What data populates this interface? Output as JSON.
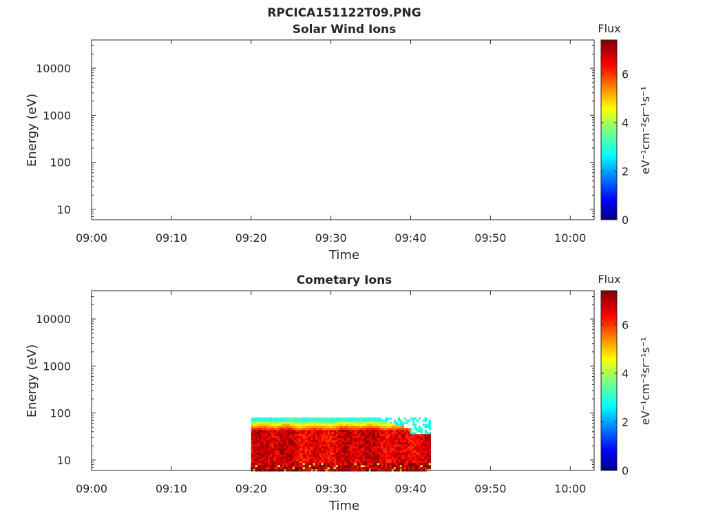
{
  "figure": {
    "title": "RPCICA151122T09.PNG"
  },
  "chart_data": [
    {
      "type": "heatmap",
      "title": "Solar Wind Ions",
      "xlabel": "Time",
      "ylabel": "Energy (eV)",
      "x_ticks": [
        "09:00",
        "09:10",
        "09:20",
        "09:30",
        "09:40",
        "09:50",
        "10:00"
      ],
      "x_range_minutes": [
        0,
        63
      ],
      "y_scale": "log",
      "y_range": [
        6,
        40000
      ],
      "y_ticks": [
        10,
        100,
        1000,
        10000
      ],
      "y_tick_labels": [
        "10",
        "100",
        "1000",
        "10000"
      ],
      "colorbar": {
        "title": "Flux",
        "label": "eV⁻¹cm⁻²sr⁻¹s⁻¹",
        "range": [
          0,
          7.4
        ],
        "ticks": [
          0,
          2,
          4,
          6
        ],
        "tick_labels": [
          "0",
          "2",
          "4",
          "6"
        ],
        "colormap": "jet"
      },
      "data": []
    },
    {
      "type": "heatmap",
      "title": "Cometary Ions",
      "xlabel": "Time",
      "ylabel": "Energy (eV)",
      "x_ticks": [
        "09:00",
        "09:10",
        "09:20",
        "09:30",
        "09:40",
        "09:50",
        "10:00"
      ],
      "x_range_minutes": [
        0,
        63
      ],
      "y_scale": "log",
      "y_range": [
        6,
        40000
      ],
      "y_ticks": [
        10,
        100,
        1000,
        10000
      ],
      "y_tick_labels": [
        "10",
        "100",
        "1000",
        "10000"
      ],
      "colorbar": {
        "title": "Flux",
        "label": "eV⁻¹cm⁻²sr⁻¹s⁻¹",
        "range": [
          0,
          7.4
        ],
        "ticks": [
          0,
          2,
          4,
          6
        ],
        "tick_labels": [
          "0",
          "2",
          "4",
          "6"
        ],
        "colormap": "jet"
      },
      "data_region": {
        "time_start_minutes": 20,
        "time_end_minutes": 42.5,
        "energy_min": 6,
        "energy_max": 80,
        "peak_flux": 7.2,
        "low_energy_flux": 6.8,
        "high_energy_edge_flux": 2.8
      }
    }
  ]
}
